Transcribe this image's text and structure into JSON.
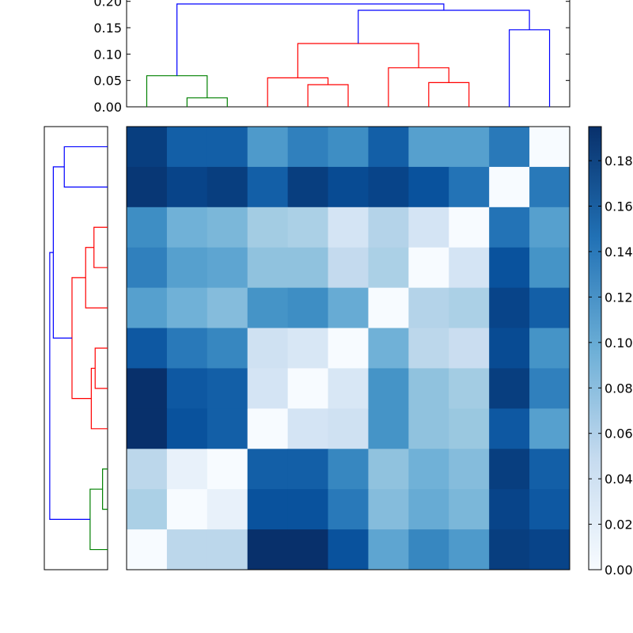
{
  "colors": {
    "colormap_low": "#f7fbff",
    "colormap_high": "#08306b",
    "cluster_blue": "#0000ff",
    "cluster_red": "#ff0000",
    "cluster_green": "#008000",
    "axes_frame": "#000000"
  },
  "chart_data": [
    {
      "type": "dendrogram",
      "panel": "top",
      "orientation": "top",
      "yticks": [
        "0.00",
        "0.05",
        "0.10",
        "0.15",
        "0.20"
      ],
      "ylim": [
        0,
        0.2
      ],
      "leaves": 11,
      "links": [
        {
          "left": 1.5,
          "right": 2.5,
          "height": 0.017,
          "color": "green"
        },
        {
          "left": 0.5,
          "right": 2.0,
          "height": 0.059,
          "color": "green"
        },
        {
          "left": 4.5,
          "right": 5.5,
          "height": 0.042,
          "color": "red"
        },
        {
          "left": 3.5,
          "right": 5.0,
          "height": 0.055,
          "color": "red"
        },
        {
          "left": 7.5,
          "right": 8.5,
          "height": 0.046,
          "color": "red"
        },
        {
          "left": 6.5,
          "right": 8.0,
          "height": 0.074,
          "color": "red"
        },
        {
          "left": 4.25,
          "right": 7.25,
          "height": 0.12,
          "color": "red"
        },
        {
          "left": 9.5,
          "right": 10.5,
          "height": 0.146,
          "color": "blue"
        },
        {
          "left": 5.75,
          "right": 10.0,
          "height": 0.183,
          "color": "blue"
        },
        {
          "left": 1.25,
          "right": 7.875,
          "height": 0.195,
          "color": "blue"
        }
      ]
    },
    {
      "type": "dendrogram",
      "panel": "left",
      "orientation": "left",
      "leaves": 11,
      "note_order": "leaf index 0 at bottom",
      "links": [
        {
          "left": 1.5,
          "right": 2.5,
          "height": 0.017,
          "color": "green"
        },
        {
          "left": 0.5,
          "right": 2.0,
          "height": 0.059,
          "color": "green"
        },
        {
          "left": 4.5,
          "right": 5.5,
          "height": 0.042,
          "color": "red"
        },
        {
          "left": 3.5,
          "right": 5.0,
          "height": 0.055,
          "color": "red"
        },
        {
          "left": 7.5,
          "right": 8.5,
          "height": 0.046,
          "color": "red"
        },
        {
          "left": 6.5,
          "right": 8.0,
          "height": 0.074,
          "color": "red"
        },
        {
          "left": 4.25,
          "right": 7.25,
          "height": 0.12,
          "color": "red"
        },
        {
          "left": 9.5,
          "right": 10.5,
          "height": 0.146,
          "color": "blue"
        },
        {
          "left": 5.75,
          "right": 10.0,
          "height": 0.183,
          "color": "blue"
        },
        {
          "left": 1.25,
          "right": 7.875,
          "height": 0.195,
          "color": "blue"
        }
      ]
    },
    {
      "type": "heatmap",
      "rows": 11,
      "cols": 11,
      "vmin": 0.0,
      "vmax": 0.195,
      "values": [
        [
          0.185,
          0.16,
          0.16,
          0.115,
          0.135,
          0.125,
          0.16,
          0.11,
          0.11,
          0.14,
          0.0
        ],
        [
          0.19,
          0.18,
          0.185,
          0.16,
          0.185,
          0.175,
          0.18,
          0.17,
          0.145,
          0.0,
          0.14
        ],
        [
          0.125,
          0.095,
          0.09,
          0.07,
          0.065,
          0.035,
          0.06,
          0.035,
          0.0,
          0.145,
          0.11
        ],
        [
          0.135,
          0.11,
          0.105,
          0.08,
          0.08,
          0.05,
          0.065,
          0.0,
          0.035,
          0.17,
          0.12
        ],
        [
          0.11,
          0.095,
          0.085,
          0.12,
          0.125,
          0.1,
          0.0,
          0.06,
          0.065,
          0.18,
          0.16
        ],
        [
          0.165,
          0.14,
          0.13,
          0.04,
          0.03,
          0.0,
          0.095,
          0.055,
          0.045,
          0.175,
          0.12
        ],
        [
          0.195,
          0.165,
          0.16,
          0.035,
          0.0,
          0.03,
          0.12,
          0.08,
          0.07,
          0.185,
          0.135
        ],
        [
          0.195,
          0.17,
          0.16,
          0.0,
          0.035,
          0.04,
          0.12,
          0.08,
          0.075,
          0.165,
          0.11
        ],
        [
          0.055,
          0.015,
          0.0,
          0.16,
          0.16,
          0.13,
          0.08,
          0.095,
          0.085,
          0.185,
          0.16
        ],
        [
          0.065,
          0.0,
          0.015,
          0.17,
          0.17,
          0.14,
          0.085,
          0.1,
          0.09,
          0.18,
          0.165
        ],
        [
          0.0,
          0.055,
          0.055,
          0.195,
          0.195,
          0.17,
          0.105,
          0.13,
          0.115,
          0.185,
          0.18
        ]
      ]
    },
    {
      "type": "colorbar",
      "ylim": [
        0,
        0.195
      ],
      "ticks": [
        "0.00",
        "0.02",
        "0.04",
        "0.06",
        "0.08",
        "0.10",
        "0.12",
        "0.14",
        "0.16",
        "0.18"
      ]
    }
  ]
}
